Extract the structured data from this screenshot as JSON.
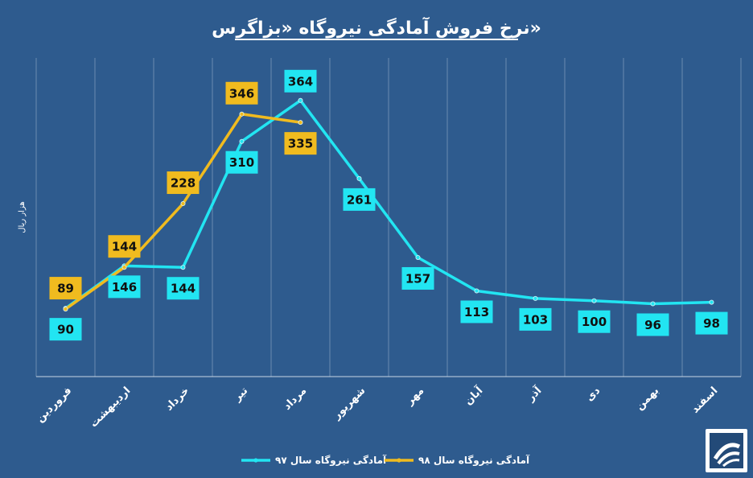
{
  "chart_data": {
    "type": "line",
    "title": "نرخ فروش آمادگی نیروگاه «بزاگرس»",
    "ylabel": "هزار ریال",
    "xlabel": "",
    "ylim": [
      0,
      420
    ],
    "grid": "vertical",
    "legend_position": "bottom",
    "categories": [
      "فروردین",
      "اردیبهشت",
      "خرداد",
      "تیر",
      "مرداد",
      "شهریور",
      "مهر",
      "آبان",
      "آذر",
      "دی",
      "بهمن",
      "اسفند"
    ],
    "series": [
      {
        "name": "آمادگی نیروگاه سال ۹۷",
        "color": "#22e5f2",
        "values": [
          90,
          146,
          144,
          310,
          364,
          261,
          157,
          113,
          103,
          100,
          96,
          98
        ]
      },
      {
        "name": "آمادگی نیروگاه سال ۹۸",
        "color": "#f0bb1f",
        "values": [
          89,
          144,
          228,
          346,
          335,
          null,
          null,
          null,
          null,
          null,
          null,
          null
        ]
      }
    ]
  },
  "logo": {
    "icon": "company-logo-icon"
  }
}
